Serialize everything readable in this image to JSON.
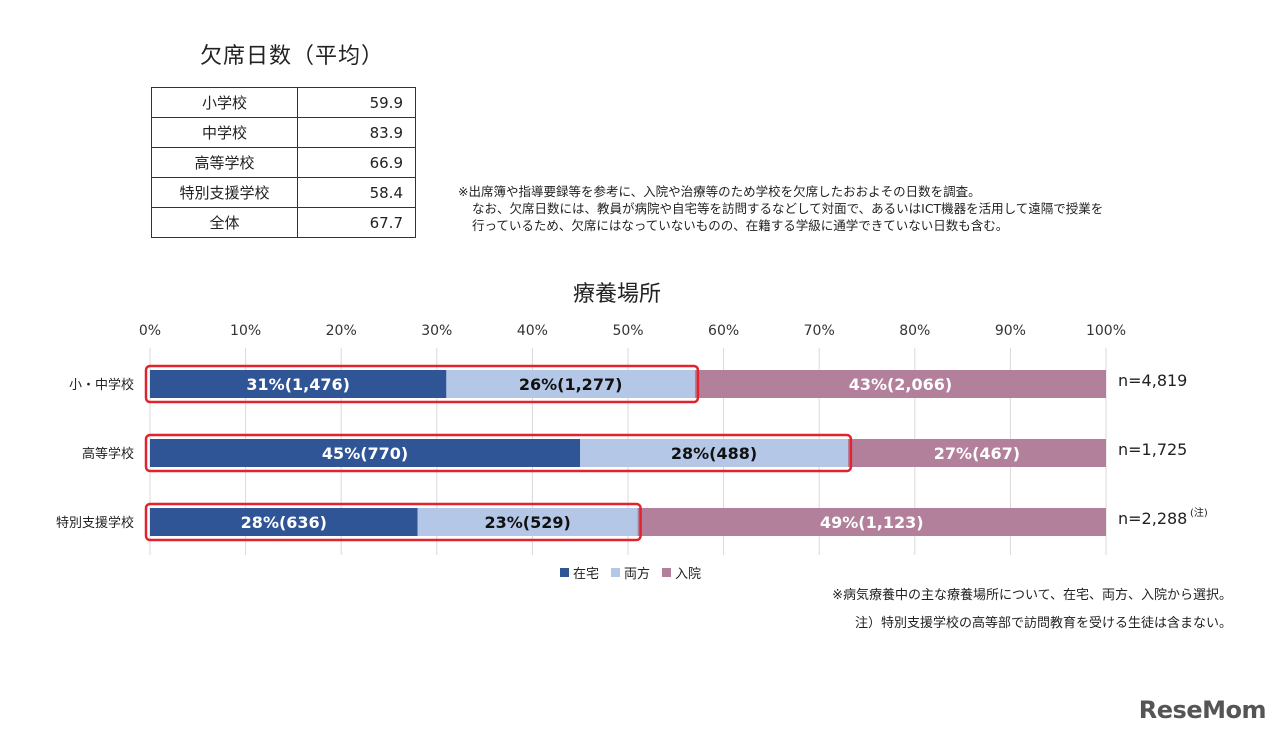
{
  "absence_table": {
    "title": "欠席日数（平均）",
    "rows": [
      {
        "label": "小学校",
        "value": "59.9"
      },
      {
        "label": "中学校",
        "value": "83.9"
      },
      {
        "label": "高等学校",
        "value": "66.9"
      },
      {
        "label": "特別支援学校",
        "value": "58.4"
      },
      {
        "label": "全体",
        "value": "67.7"
      }
    ]
  },
  "note1": {
    "line1": "※出席簿や指導要録等を参考に、入院や治療等のため学校を欠席したおおよその日数を調査。",
    "line2": "なお、欠席日数には、教員が病院や自宅等を訪問するなどして対面で、あるいはICT機器を活用して遠隔で授業を",
    "line3": "行っているため、欠席にはなっていないものの、在籍する学級に通学できていない日数も含む。"
  },
  "chart_data": {
    "type": "bar",
    "orientation": "horizontal",
    "stacked": true,
    "percent_stacked": true,
    "title": "療養場所",
    "x_ticks": [
      "0%",
      "10%",
      "20%",
      "30%",
      "40%",
      "50%",
      "60%",
      "70%",
      "80%",
      "90%",
      "100%"
    ],
    "xlim": [
      0,
      100
    ],
    "grid": true,
    "legend_position": "bottom",
    "categories": [
      "小・中学校",
      "高等学校",
      "特別支援学校"
    ],
    "series": [
      {
        "name": "在宅",
        "color": "#2f5597",
        "label_color": "#ffffff",
        "values": [
          31,
          45,
          28
        ],
        "counts": [
          1476,
          770,
          636
        ],
        "labels": [
          "31%(1,476)",
          "45%(770)",
          "28%(636)"
        ]
      },
      {
        "name": "両方",
        "color": "#b4c7e7",
        "label_color": "#111111",
        "values": [
          26,
          28,
          23
        ],
        "counts": [
          1277,
          488,
          529
        ],
        "labels": [
          "26%(1,277)",
          "28%(488)",
          "23%(529)"
        ]
      },
      {
        "name": "入院",
        "color": "#b3809b",
        "label_color": "#ffffff",
        "values": [
          43,
          27,
          49
        ],
        "counts": [
          2066,
          467,
          1123
        ],
        "labels": [
          "43%(2,066)",
          "27%(467)",
          "49%(1,123)"
        ]
      }
    ],
    "n_labels": [
      "n=4,819",
      "n=1,725",
      "n=2,288"
    ],
    "n_superscripts": [
      "",
      "",
      "(注)"
    ],
    "highlight_color": "#e0232e"
  },
  "note2": {
    "line1": "※病気療養中の主な療養場所について、在宅、両方、入院から選択。",
    "line2": "注）特別支援学校の高等部で訪問教育を受ける生徒は含まない。"
  },
  "logo": "ReseMom"
}
